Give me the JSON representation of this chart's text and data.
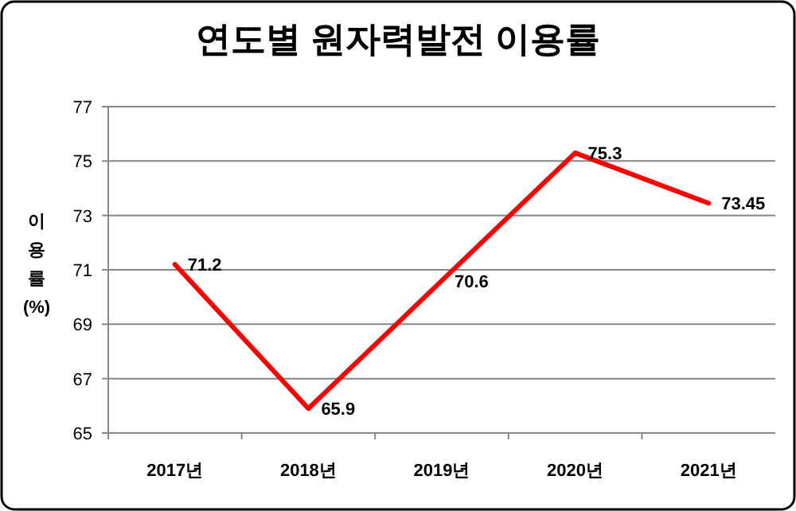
{
  "chart_data": {
    "type": "line",
    "title": "연도별 원자력발전 이용률",
    "ylabel": "이용률(%)",
    "categories": [
      "2017년",
      "2018년",
      "2019년",
      "2020년",
      "2021년"
    ],
    "series": [
      {
        "color": "#ff0000",
        "values": [
          71.2,
          65.9,
          70.6,
          75.3,
          73.45
        ]
      }
    ],
    "ylim": [
      65,
      77
    ],
    "yticks": [
      65,
      67,
      69,
      71,
      73,
      75,
      77
    ],
    "grid": "y",
    "data_labels": true,
    "marker": "none",
    "line_style": "solid"
  }
}
